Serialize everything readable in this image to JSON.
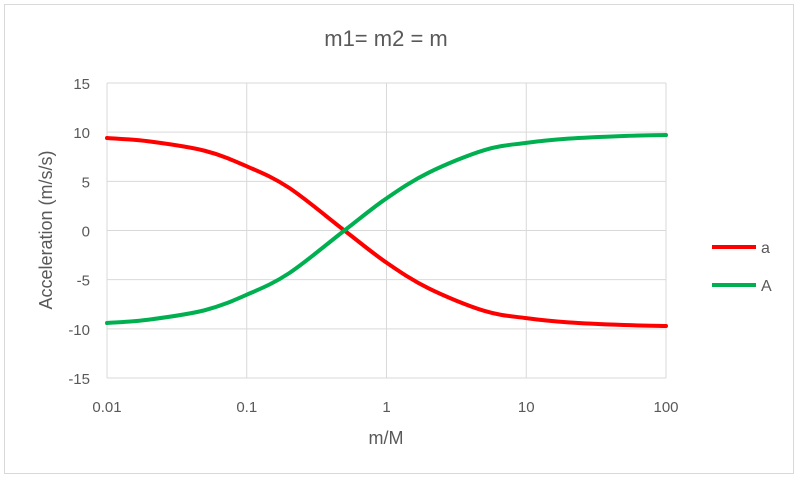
{
  "chart_data": {
    "type": "line",
    "title": "m1= m2 = m",
    "xlabel": "m/M",
    "ylabel": "Acceleration (m/s/s)",
    "x_scale": "log",
    "xlim": [
      0.01,
      100
    ],
    "ylim": [
      -15,
      15
    ],
    "x_ticks": [
      0.01,
      0.1,
      1,
      10,
      100
    ],
    "x_tick_labels": [
      "0.01",
      "0.1",
      "1",
      "10",
      "100"
    ],
    "y_ticks": [
      15,
      10,
      5,
      0,
      -5,
      -10,
      -15
    ],
    "y_tick_labels": [
      "15",
      "10",
      "5",
      "0",
      "-5",
      "-10",
      "-15"
    ],
    "grid": true,
    "legend_position": "right",
    "x": [
      0.01,
      0.02,
      0.05,
      0.1,
      0.2,
      0.5,
      1,
      2,
      5,
      10,
      20,
      50,
      100
    ],
    "series": [
      {
        "name": "a",
        "color": "#ff0000",
        "values": [
          9.41,
          9.06,
          8.11,
          6.53,
          4.36,
          0.0,
          -3.27,
          -5.88,
          -8.17,
          -8.91,
          -9.34,
          -9.61,
          -9.71
        ]
      },
      {
        "name": "A",
        "color": "#00b050",
        "values": [
          -9.41,
          -9.06,
          -8.11,
          -6.53,
          -4.36,
          0.0,
          3.27,
          5.88,
          8.17,
          8.91,
          9.34,
          9.61,
          9.71
        ]
      }
    ]
  }
}
